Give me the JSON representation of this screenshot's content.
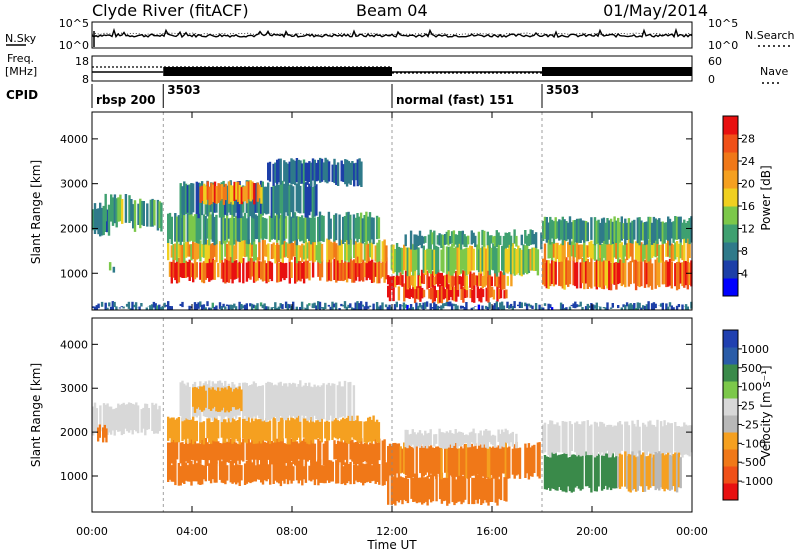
{
  "header": {
    "station": "Clyde River (fitACF)",
    "beam": "Beam 04",
    "date": "01/May/2014"
  },
  "top_panels": {
    "nsky_label": "N.Sky",
    "nsky_ticks": [
      "10^5",
      "10^0"
    ],
    "nsearch_label": "N.Search",
    "nsearch_ticks": [
      "10^5",
      "10^0"
    ],
    "freq_label_1": "Freq.",
    "freq_label_2": "[MHz]",
    "freq_ticks": [
      "18",
      "8"
    ],
    "nave_label": "Nave",
    "nave_ticks": [
      "60",
      "0"
    ],
    "cpid_label": "CPID",
    "cpid_segments": [
      {
        "label": "rbsp 200",
        "start_hour": 0.0
      },
      {
        "label": "3503",
        "start_hour": 2.85
      },
      {
        "label": "normal (fast) 151",
        "start_hour": 12.0
      },
      {
        "label": "3503",
        "start_hour": 18.0
      }
    ]
  },
  "colors": {
    "power_scale": [
      "#0000ff",
      "#1c3fa8",
      "#2f7a8a",
      "#3fa070",
      "#7cc84a",
      "#f0d020",
      "#f5a020",
      "#f07818",
      "#f05018",
      "#e81010"
    ],
    "velocity_scale": [
      "#e81010",
      "#f05018",
      "#f07818",
      "#f5a020",
      "#b8b8b8",
      "#d8d8d8",
      "#7cc84a",
      "#3a8a4a",
      "#2a5ca8",
      "#2040b0"
    ]
  },
  "chart_data": [
    {
      "type": "heatmap",
      "name": "power",
      "x_unit": "Time UT",
      "x_range_hours": [
        0,
        24
      ],
      "xticks": [
        "00:00",
        "04:00",
        "08:00",
        "12:00",
        "16:00",
        "20:00",
        "00:00"
      ],
      "xlabel": "Time UT",
      "ylabel": "Slant Range [km]",
      "ylim": [
        180,
        4600
      ],
      "yticks": [
        "1000",
        "2000",
        "3000",
        "4000"
      ],
      "ytick_values": [
        1000,
        2000,
        3000,
        4000
      ],
      "colorbar_label": "Power [dB]",
      "colorbar_ticks": [
        "4",
        "8",
        "12",
        "16",
        "20",
        "24",
        "28"
      ],
      "colorbar_range": [
        0,
        30
      ],
      "regions": [
        {
          "t0": 0.0,
          "t1": 0.7,
          "r0": 1900,
          "r1": 2500,
          "value": 8
        },
        {
          "t0": 0.5,
          "t1": 1.6,
          "r0": 2100,
          "r1": 2700,
          "value": 12
        },
        {
          "t0": 1.6,
          "t1": 2.8,
          "r0": 2000,
          "r1": 2600,
          "value": 10
        },
        {
          "t0": 0.6,
          "t1": 0.9,
          "r0": 1000,
          "r1": 1200,
          "value": 10
        },
        {
          "t0": 3.0,
          "t1": 11.8,
          "r0": 850,
          "r1": 1300,
          "value": 26
        },
        {
          "t0": 3.0,
          "t1": 11.8,
          "r0": 1300,
          "r1": 1700,
          "value": 18
        },
        {
          "t0": 3.0,
          "t1": 11.5,
          "r0": 1700,
          "r1": 2300,
          "value": 10
        },
        {
          "t0": 3.5,
          "t1": 9.0,
          "r0": 2300,
          "r1": 3000,
          "value": 8
        },
        {
          "t0": 7.0,
          "t1": 10.8,
          "r0": 3000,
          "r1": 3500,
          "value": 6
        },
        {
          "t0": 4.3,
          "t1": 6.8,
          "r0": 2600,
          "r1": 3000,
          "value": 22
        },
        {
          "t0": 11.8,
          "t1": 16.6,
          "r0": 400,
          "r1": 700,
          "value": 28
        },
        {
          "t0": 11.8,
          "t1": 16.8,
          "r0": 700,
          "r1": 1000,
          "value": 24
        },
        {
          "t0": 11.8,
          "t1": 18.0,
          "r0": 1000,
          "r1": 1600,
          "value": 14
        },
        {
          "t0": 12.5,
          "t1": 18.0,
          "r0": 1600,
          "r1": 1900,
          "value": 10
        },
        {
          "t0": 18.0,
          "t1": 24.0,
          "r0": 700,
          "r1": 1300,
          "value": 24
        },
        {
          "t0": 18.0,
          "t1": 24.0,
          "r0": 1300,
          "r1": 1700,
          "value": 18
        },
        {
          "t0": 18.0,
          "t1": 24.0,
          "r0": 1700,
          "r1": 2200,
          "value": 10
        },
        {
          "t0": 0.0,
          "t1": 24.0,
          "r0": 200,
          "r1": 300,
          "value": 6
        }
      ]
    },
    {
      "type": "heatmap",
      "name": "velocity",
      "x_unit": "Time UT",
      "x_range_hours": [
        0,
        24
      ],
      "xticks": [
        "00:00",
        "04:00",
        "08:00",
        "12:00",
        "16:00",
        "20:00",
        "00:00"
      ],
      "xlabel": "Time UT",
      "ylabel": "Slant Range [km]",
      "ylim": [
        180,
        4600
      ],
      "yticks": [
        "1000",
        "2000",
        "3000",
        "4000"
      ],
      "ytick_values": [
        1000,
        2000,
        3000,
        4000
      ],
      "colorbar_label": "Velocity [m s⁻¹]",
      "colorbar_ticks": [
        "-1000",
        "-500",
        "-100",
        "-25",
        "25",
        "100",
        "500",
        "1000"
      ],
      "regions": [
        {
          "t0": 0.0,
          "t1": 2.8,
          "r0": 2000,
          "r1": 2600,
          "value": 10
        },
        {
          "t0": 0.2,
          "t1": 0.6,
          "r0": 1800,
          "r1": 2100,
          "value": -200
        },
        {
          "t0": 3.0,
          "t1": 11.8,
          "r0": 850,
          "r1": 1300,
          "value": -200
        },
        {
          "t0": 3.0,
          "t1": 11.8,
          "r0": 1300,
          "r1": 1800,
          "value": -150
        },
        {
          "t0": 3.0,
          "t1": 11.5,
          "r0": 1800,
          "r1": 2300,
          "value": -60
        },
        {
          "t0": 3.5,
          "t1": 10.5,
          "r0": 2300,
          "r1": 3100,
          "value": 5
        },
        {
          "t0": 4.0,
          "t1": 6.0,
          "r0": 2500,
          "r1": 3000,
          "value": -60
        },
        {
          "t0": 11.8,
          "t1": 16.6,
          "r0": 400,
          "r1": 1000,
          "value": -150
        },
        {
          "t0": 11.8,
          "t1": 18.0,
          "r0": 1000,
          "r1": 1700,
          "value": -120
        },
        {
          "t0": 12.5,
          "t1": 17.0,
          "r0": 1700,
          "r1": 2000,
          "value": 5
        },
        {
          "t0": 18.0,
          "t1": 21.0,
          "r0": 700,
          "r1": 1500,
          "value": 150
        },
        {
          "t0": 18.0,
          "t1": 24.0,
          "r0": 1500,
          "r1": 2200,
          "value": 5
        },
        {
          "t0": 21.0,
          "t1": 24.0,
          "r0": 700,
          "r1": 1500,
          "value": -40
        }
      ]
    }
  ]
}
